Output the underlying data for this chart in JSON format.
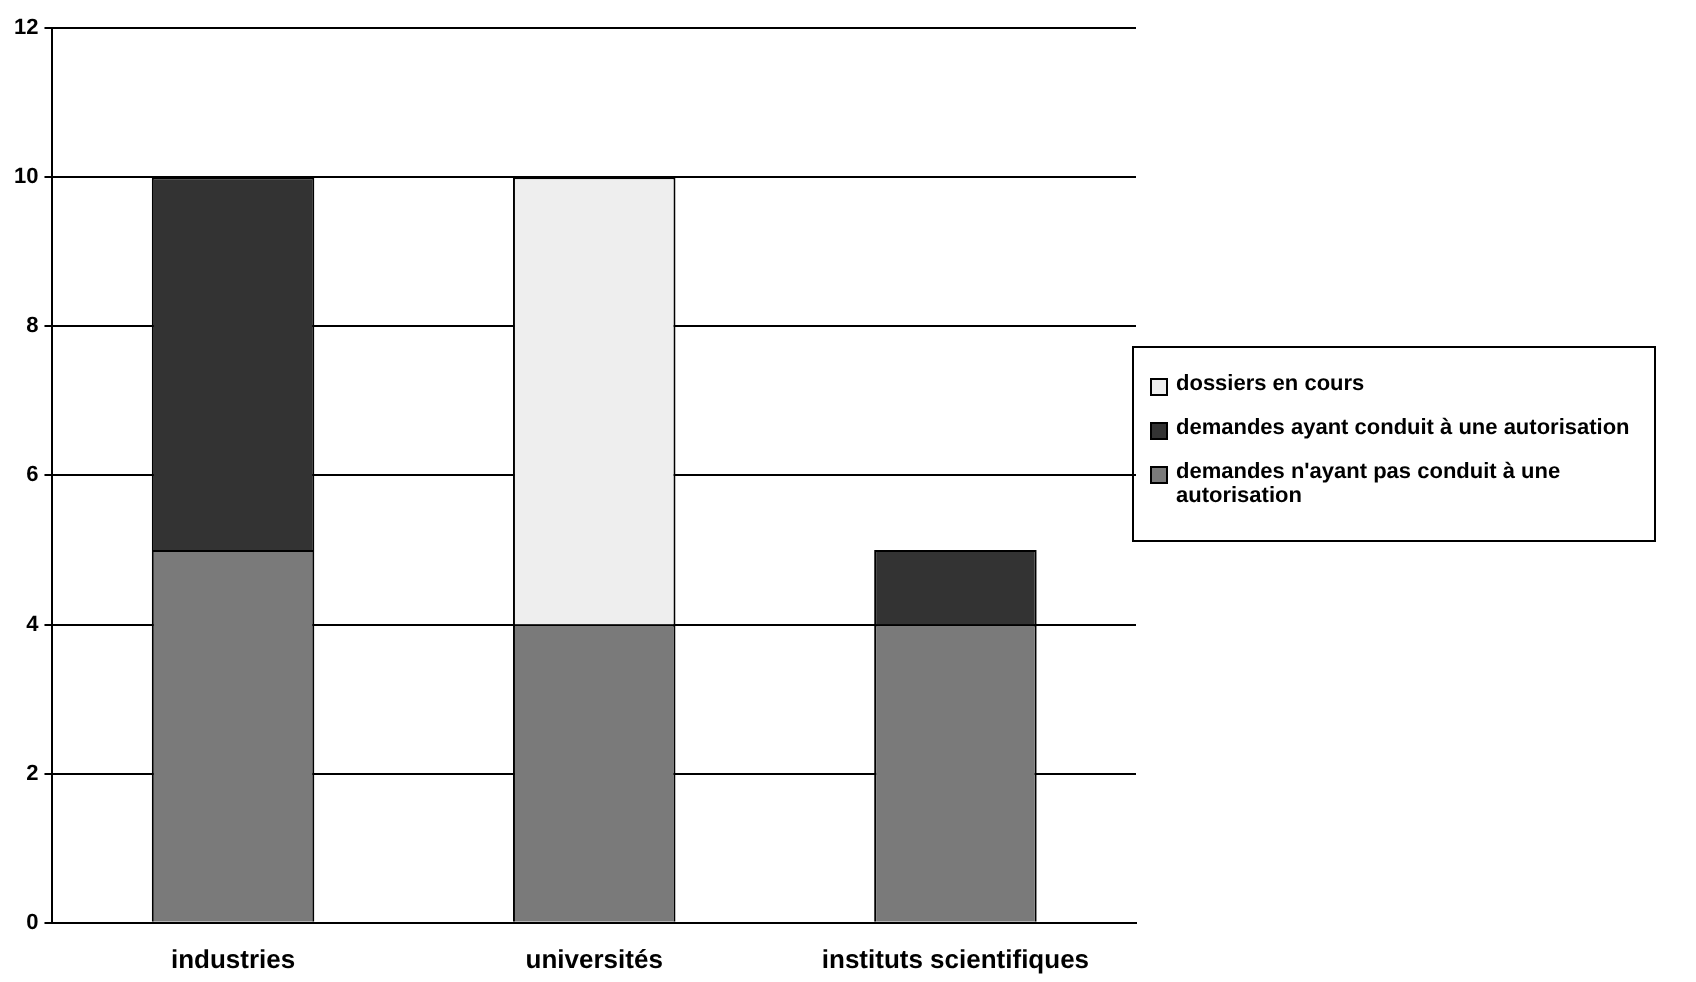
{
  "chart_data": {
    "type": "bar",
    "stacked": true,
    "categories": [
      "industries",
      "universités",
      "instituts scientifiques"
    ],
    "series": [
      {
        "name": "demandes n'ayant pas conduit à une autorisation",
        "color": "#7a7a7a",
        "values": [
          5,
          4,
          4
        ]
      },
      {
        "name": "demandes ayant conduit à une autorisation",
        "color": "#333333",
        "values": [
          5,
          0,
          1
        ]
      },
      {
        "name": "dossiers en cours",
        "color": "#eeeeee",
        "values": [
          0,
          6,
          0
        ]
      }
    ],
    "ylim": [
      0,
      12
    ],
    "yticks": [
      0,
      2,
      4,
      6,
      8,
      10,
      12
    ],
    "grid": "y",
    "legend": "right"
  }
}
